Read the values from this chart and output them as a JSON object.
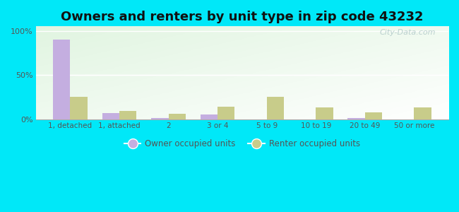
{
  "title": "Owners and renters by unit type in zip code 43232",
  "categories": [
    "1, detached",
    "1, attached",
    "2",
    "3 or 4",
    "5 to 9",
    "10 to 19",
    "20 to 49",
    "50 or more"
  ],
  "owner_values": [
    90,
    7,
    1,
    5,
    0,
    0,
    1,
    0
  ],
  "renter_values": [
    25,
    9,
    6,
    14,
    25,
    13,
    8,
    13
  ],
  "owner_color": "#c4aee0",
  "renter_color": "#c8cc8a",
  "background_outer": "#00e8f8",
  "ylabel_ticks": [
    "0%",
    "50%",
    "100%"
  ],
  "ytick_vals": [
    0,
    50,
    100
  ],
  "ylim": [
    0,
    105
  ],
  "bar_width": 0.35,
  "legend_owner": "Owner occupied units",
  "legend_renter": "Renter occupied units",
  "title_fontsize": 13,
  "watermark": "City-Data.com"
}
